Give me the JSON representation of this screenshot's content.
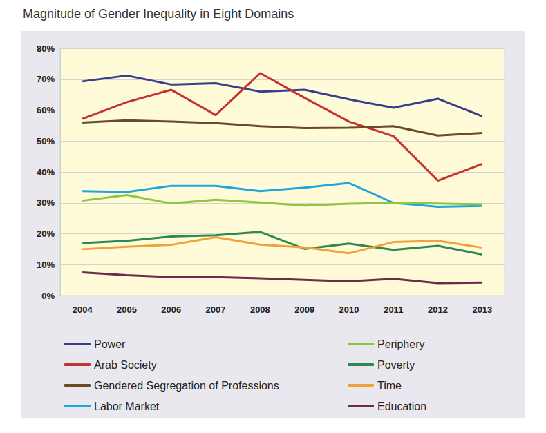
{
  "chart_data": {
    "type": "line",
    "title": "Magnitude of Gender Inequality in Eight Domains",
    "categories": [
      "2004",
      "2005",
      "2006",
      "2007",
      "2008",
      "2009",
      "2010",
      "2011",
      "2012",
      "2013"
    ],
    "series": [
      {
        "name": "Power",
        "color": "#3a3d8c",
        "values": [
          69.3,
          71.2,
          68.3,
          68.7,
          66.0,
          66.6,
          63.5,
          60.8,
          63.7,
          58.0
        ]
      },
      {
        "name": "Arab Society",
        "color": "#c7302e",
        "values": [
          57.2,
          62.6,
          66.6,
          58.4,
          72.0,
          64.0,
          56.3,
          51.6,
          37.2,
          42.6
        ]
      },
      {
        "name": "Gendered Segregation of Professions",
        "color": "#6b4a2a",
        "values": [
          56.0,
          56.7,
          56.3,
          55.8,
          54.8,
          54.2,
          54.3,
          54.8,
          51.8,
          52.6
        ]
      },
      {
        "name": "Labor Market",
        "color": "#1ca7dd",
        "values": [
          33.8,
          33.5,
          35.5,
          35.5,
          33.8,
          34.9,
          36.4,
          30.0,
          28.7,
          29.0
        ]
      },
      {
        "name": "Periphery",
        "color": "#8dc63f",
        "values": [
          30.7,
          32.5,
          29.8,
          31.0,
          30.1,
          29.1,
          29.7,
          30.0,
          29.8,
          29.5
        ]
      },
      {
        "name": "Poverty",
        "color": "#2e8a4c",
        "values": [
          17.0,
          17.7,
          19.1,
          19.5,
          20.6,
          15.1,
          16.8,
          14.8,
          16.1,
          13.3
        ]
      },
      {
        "name": "Time",
        "color": "#f0a23a",
        "values": [
          15.0,
          15.8,
          16.4,
          18.9,
          16.5,
          15.6,
          13.7,
          17.3,
          17.7,
          15.5
        ]
      },
      {
        "name": "Education",
        "color": "#6a2c4a",
        "values": [
          7.5,
          6.6,
          6.0,
          6.0,
          5.6,
          5.1,
          4.6,
          5.4,
          4.0,
          4.2
        ]
      }
    ],
    "ylim": [
      0,
      80
    ],
    "yticks": [
      {
        "value": 0,
        "label": "0%"
      },
      {
        "value": 10,
        "label": "10%"
      },
      {
        "value": 20,
        "label": "20%"
      },
      {
        "value": 30,
        "label": "30%"
      },
      {
        "value": 40,
        "label": "40%"
      },
      {
        "value": 50,
        "label": "50%"
      },
      {
        "value": 60,
        "label": "60%"
      },
      {
        "value": 70,
        "label": "70%"
      },
      {
        "value": 80,
        "label": "80%"
      }
    ],
    "grid": true,
    "legend": "bottom"
  }
}
